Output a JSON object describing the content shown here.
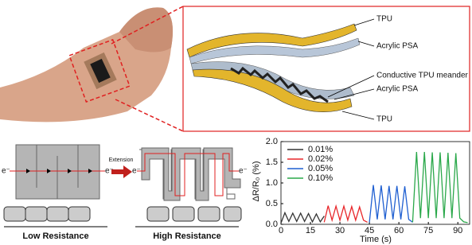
{
  "labels": {
    "tpu_top": "TPU",
    "psa_top": "Acrylic PSA",
    "meander": "Conductive TPU meander",
    "psa_bottom": "Acrylic PSA",
    "tpu_bottom": "TPU",
    "electron": "e⁻",
    "extension": "Extension",
    "low": "Low Resistance",
    "high": "High Resistance"
  },
  "chart_data": {
    "type": "line",
    "ylabel": "ΔR/R₀ (%)",
    "xlabel": "Time (s)",
    "xlim": [
      0,
      96
    ],
    "ylim": [
      0,
      2.0
    ],
    "xticks": [
      0,
      15,
      30,
      45,
      60,
      75,
      90
    ],
    "yticks": [
      {
        "value": 0,
        "label": "0.0"
      },
      {
        "value": 0.5,
        "label": "0.5"
      },
      {
        "value": 1,
        "label": "1.0"
      },
      {
        "value": 1.5,
        "label": "1.5"
      },
      {
        "value": 2,
        "label": "2.0"
      }
    ],
    "legend": "upper left",
    "series": [
      {
        "name": "0.01%",
        "color": "#333333",
        "x": [
          0,
          2,
          4,
          6,
          8,
          10,
          12,
          14,
          16,
          18,
          20,
          22
        ],
        "values": [
          0.03,
          0.28,
          0.07,
          0.27,
          0.07,
          0.27,
          0.07,
          0.26,
          0.06,
          0.25,
          0.06,
          0.2
        ]
      },
      {
        "name": "0.02%",
        "color": "#e8262a",
        "x": [
          22,
          24,
          26,
          28,
          30,
          32,
          34,
          36,
          38,
          40,
          42,
          44
        ],
        "values": [
          0.05,
          0.45,
          0.1,
          0.44,
          0.1,
          0.44,
          0.1,
          0.43,
          0.1,
          0.42,
          0.1,
          0.05
        ]
      },
      {
        "name": "0.05%",
        "color": "#1f5fd1",
        "x": [
          45,
          47,
          49,
          51,
          53,
          55,
          57,
          59,
          61,
          63,
          65,
          67
        ],
        "values": [
          0.05,
          0.95,
          0.12,
          0.94,
          0.12,
          0.93,
          0.12,
          0.93,
          0.12,
          0.92,
          0.12,
          0.05
        ]
      },
      {
        "name": "0.10%",
        "color": "#2aa84a",
        "x": [
          67,
          69,
          71,
          73,
          75,
          77,
          79,
          81,
          83,
          85,
          87,
          89,
          91,
          93,
          95
        ],
        "values": [
          0.05,
          1.75,
          0.15,
          1.75,
          0.15,
          1.74,
          0.15,
          1.74,
          0.15,
          1.73,
          0.15,
          1.72,
          0.15,
          0.06,
          0.04
        ]
      }
    ]
  }
}
